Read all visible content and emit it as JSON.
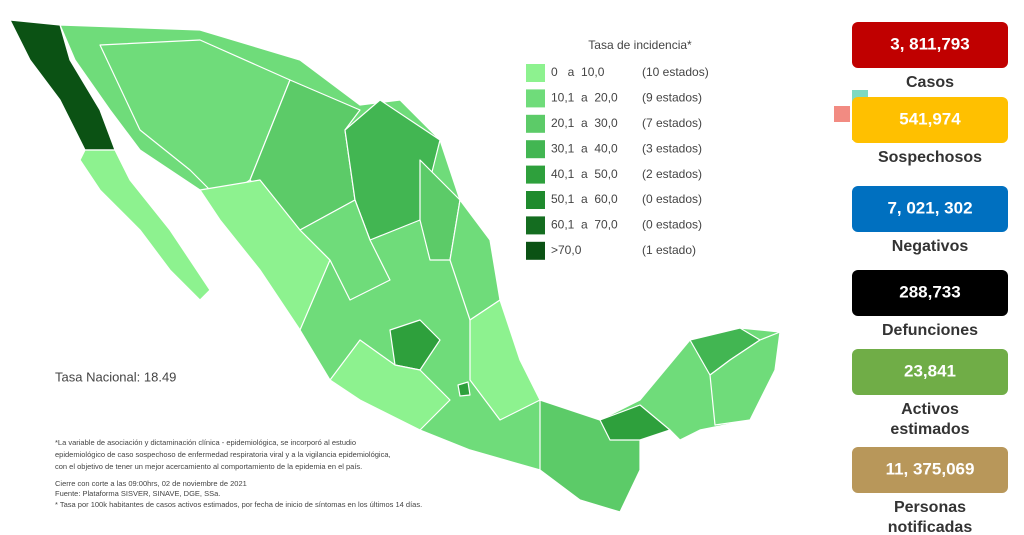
{
  "legend": {
    "title": "Tasa de incidencia*",
    "items": [
      {
        "range": "0   a  10,0",
        "count": "(10 estados)",
        "color": "#8df28f"
      },
      {
        "range": "10,1  a  20,0",
        "count": "(9 estados)",
        "color": "#6fdc7a"
      },
      {
        "range": "20,1  a  30,0",
        "count": "(7 estados)",
        "color": "#5ccb68"
      },
      {
        "range": "30,1  a  40,0",
        "count": "(3 estados)",
        "color": "#42b652"
      },
      {
        "range": "40,1  a  50,0",
        "count": "(2 estados)",
        "color": "#2ea03c"
      },
      {
        "range": "50,1  a  60,0",
        "count": "(0 estados)",
        "color": "#1f8a2d"
      },
      {
        "range": "60,1  a  70,0",
        "count": "(0 estados)",
        "color": "#146d20"
      },
      {
        "range": ">70,0",
        "count": "(1 estado)",
        "color": "#0b5214"
      }
    ]
  },
  "national_rate": "Tasa Nacional: 18.49",
  "notes": [
    "*La variable de asociación y dictaminación clínica - epidemiológica, se incorporó al estudio",
    "epidemiológico de caso sospechoso de enfermedad respiratoria viral y a la vigilancia epidemiológica,",
    "con el objetivo de tener un mejor acercamiento al comportamiento de la epidemia en el país.",
    "Cierre con corte a las 09:00hrs, 02 de noviembre de 2021",
    "Fuente: Plataforma SISVER, SINAVE, DGE, SSa.",
    "* Tasa por 100k habitantes de casos activos estimados, por fecha de inicio de síntomas en los últimos 14 días."
  ],
  "stats": [
    {
      "value": "3, 811,793",
      "label": [
        "Casos"
      ],
      "color": "#c00000"
    },
    {
      "value": "541,974",
      "label": [
        "Sospechosos"
      ],
      "color": "#ffc000"
    },
    {
      "value": "7, 021, 302",
      "label": [
        "Negativos"
      ],
      "color": "#0070c0"
    },
    {
      "value": "288,733",
      "label": [
        "Defunciones"
      ],
      "color": "#000000"
    },
    {
      "value": "23,841",
      "label": [
        "Activos",
        "estimados"
      ],
      "color": "#70ad47"
    },
    {
      "value": "11, 375,069",
      "label": [
        "Personas",
        "notificadas"
      ],
      "color": "#b8975a"
    }
  ]
}
